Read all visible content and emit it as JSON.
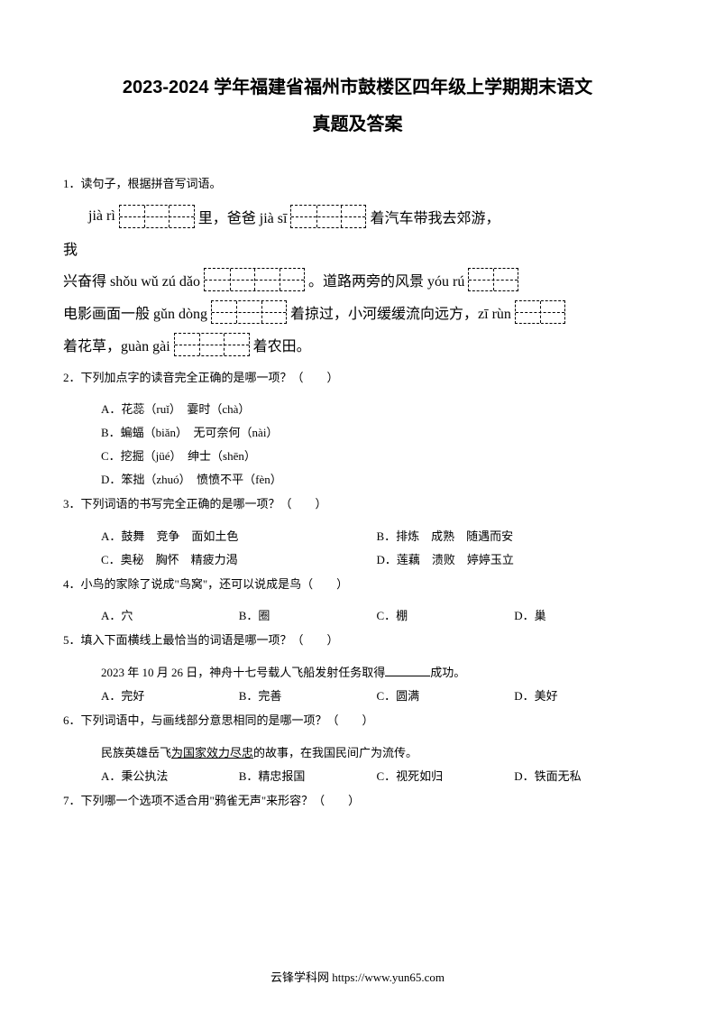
{
  "title": "2023-2024 学年福建省福州市鼓楼区四年级上学期期末语文",
  "subtitle": "真题及答案",
  "q1": {
    "num": "1．",
    "stem": "读句子，根据拼音写词语。",
    "l1a": "jià rì",
    "l1b": "里，爸爸 jià sī",
    "l1c": "着汽车带我去郊游，",
    "l2": "我",
    "l3a": "兴奋得 shǒu wǔ zú dǎo",
    "l3b": "。道路两旁的风景 yóu rú",
    "l4a": "电影画面一般 gǔn dòng",
    "l4b": "着掠过，小河缓缓流向远方，zī rùn",
    "l5a": "着花草，guàn gài",
    "l5b": "着农田。"
  },
  "q2": {
    "num": "2．",
    "stem": "下列加点字的读音完全正确的是哪一项？（　　）",
    "a": "A．花蕊（ruǐ）　霎时（chà）",
    "b": "B．蝙蝠（biǎn）　无可奈何（nài）",
    "c": "C．挖掘（jüé）　绅士（shēn）",
    "d": "D．笨拙（zhuó）　愤愤不平（fèn）"
  },
  "q3": {
    "num": "3．",
    "stem": "下列词语的书写完全正确的是哪一项？（　　）",
    "a": "A．鼓舞　竞争　面如土色",
    "b": "B．排炼　成熟　随遇而安",
    "c": "C．奥秘　胸怀　精疲力渴",
    "d": "D．莲藕　溃败　婷婷玉立"
  },
  "q4": {
    "num": "4．",
    "stem": "小鸟的家除了说成\"鸟窝\"，还可以说成是鸟（　　）",
    "a": "A．穴",
    "b": "B．圈",
    "c": "C．棚",
    "d": "D．巢"
  },
  "q5": {
    "num": "5．",
    "stem": "填入下面横线上最恰当的词语是哪一项？（　　）",
    "sub": "2023 年 10 月 26 日，神舟十七号载人飞船发射任务取得",
    "sub2": "成功。",
    "a": "A．完好",
    "b": "B．完善",
    "c": "C．圆满",
    "d": "D．美好"
  },
  "q6": {
    "num": "6．",
    "stem": "下列词语中，与画线部分意思相同的是哪一项？（　　）",
    "sub1": "民族英雄岳飞",
    "subU": "为国家效力尽忠",
    "sub2": "的故事，在我国民间广为流传。",
    "a": "A．秉公执法",
    "b": "B．精忠报国",
    "c": "C．视死如归",
    "d": "D．铁面无私"
  },
  "q7": {
    "num": "7．",
    "stem": "下列哪一个选项不适合用\"鸦雀无声\"来形容？（　　）"
  },
  "footer": "云锋学科网 https://www.yun65.com"
}
